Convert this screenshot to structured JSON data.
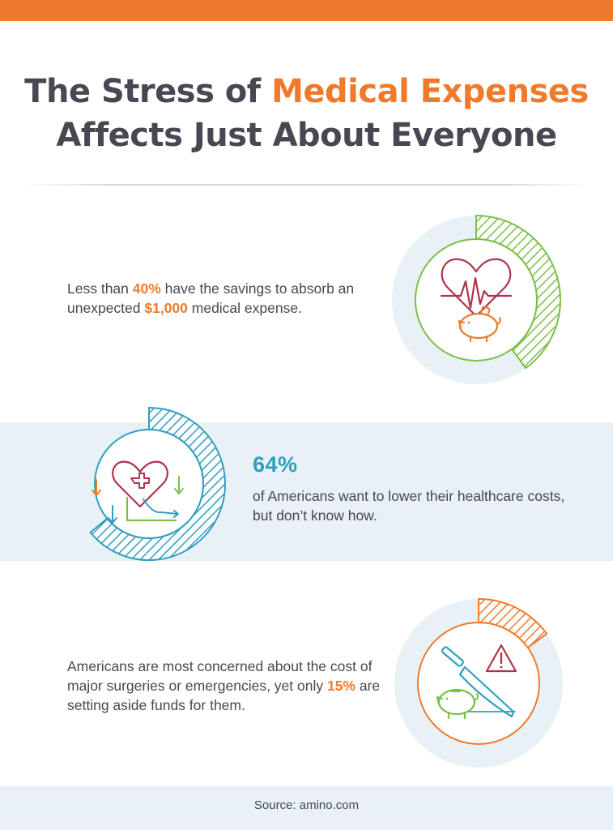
{
  "header": {
    "title_part1": "The Stress of ",
    "title_accent": "Medical Expenses",
    "title_part2": "Affects Just About Everyone"
  },
  "stats": [
    {
      "before": "Less than ",
      "highlight1": "40%",
      "middle": " have the savings to absorb an unexpected ",
      "highlight2": "$1,000",
      "after": " medical expense.",
      "level": 0.4,
      "icon": "heart-piggy-bank-icon",
      "color": "#7bbf4a"
    },
    {
      "big": "64%",
      "text": "of Americans want to lower their healthcare costs, but don’t know how.",
      "level": 0.64,
      "icon": "heart-cross-chart-icon",
      "color": "#2f9fc0"
    },
    {
      "before": "Americans are most concerned about the cost of major surgeries or emergencies, yet only ",
      "highlight1": "15%",
      "after": " are setting aside funds for them.",
      "level": 0.15,
      "icon": "scalpel-warning-piggy-icon",
      "color": "#ef7a2b"
    }
  ],
  "footer": {
    "source": "Source: amino.com"
  },
  "colors": {
    "accent": "#ef7a2b",
    "text": "#4a4652",
    "green": "#7bbf4a",
    "blue": "#2f9fc0",
    "band": "#e8f1f5",
    "heart": "#b0344a"
  }
}
